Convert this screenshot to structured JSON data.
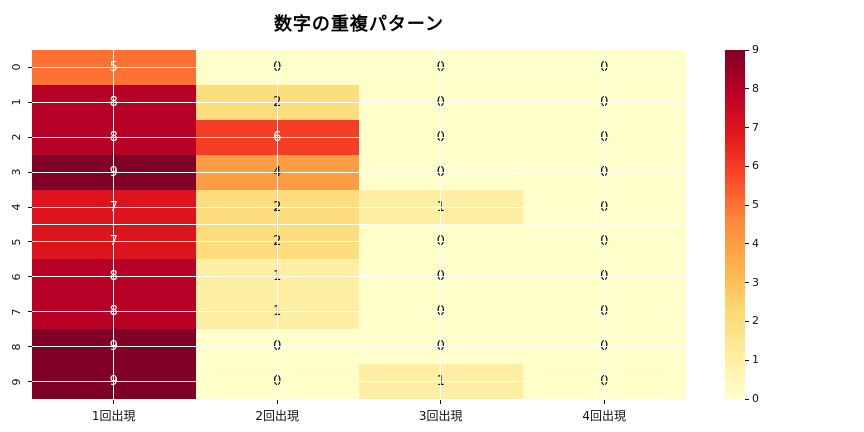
{
  "title": "数字の重複パターン",
  "chart_data": {
    "type": "heatmap",
    "title": "数字の重複パターン",
    "x_categories": [
      "1回出現",
      "2回出現",
      "3回出現",
      "4回出現"
    ],
    "y_categories": [
      "0",
      "1",
      "2",
      "3",
      "4",
      "5",
      "6",
      "7",
      "8",
      "9"
    ],
    "values": [
      [
        5,
        0,
        0,
        0
      ],
      [
        8,
        2,
        0,
        0
      ],
      [
        8,
        6,
        0,
        0
      ],
      [
        9,
        4,
        0,
        0
      ],
      [
        7,
        2,
        1,
        0
      ],
      [
        7,
        2,
        0,
        0
      ],
      [
        8,
        1,
        0,
        0
      ],
      [
        8,
        1,
        0,
        0
      ],
      [
        9,
        0,
        0,
        0
      ],
      [
        9,
        0,
        1,
        0
      ]
    ],
    "colormap": "YlOrRd",
    "vmin": 0,
    "vmax": 9,
    "colorbar_ticks": [
      0,
      1,
      2,
      3,
      4,
      5,
      6,
      7,
      8,
      9
    ],
    "palette": [
      "#ffffcc",
      "#ffeda0",
      "#fed976",
      "#feb24c",
      "#fd8d3c",
      "#fc4e2a",
      "#e31a1c",
      "#bd0026",
      "#800026"
    ],
    "value_colors": {
      "0": "#ffffcc",
      "1": "#ffefa5",
      "2": "#fedd7f",
      "3": "#febf5a",
      "4": "#fd9d43",
      "5": "#fd7134",
      "6": "#f43d25",
      "7": "#db141e",
      "8": "#b60026",
      "9": "#800026"
    },
    "white_text_min": 5,
    "annot_color_light": "#ffffff",
    "annot_color_dark": "#111111",
    "gridline_color": "#ffffff",
    "legend_position": "right",
    "grid": "white gridlines through tick centers"
  }
}
